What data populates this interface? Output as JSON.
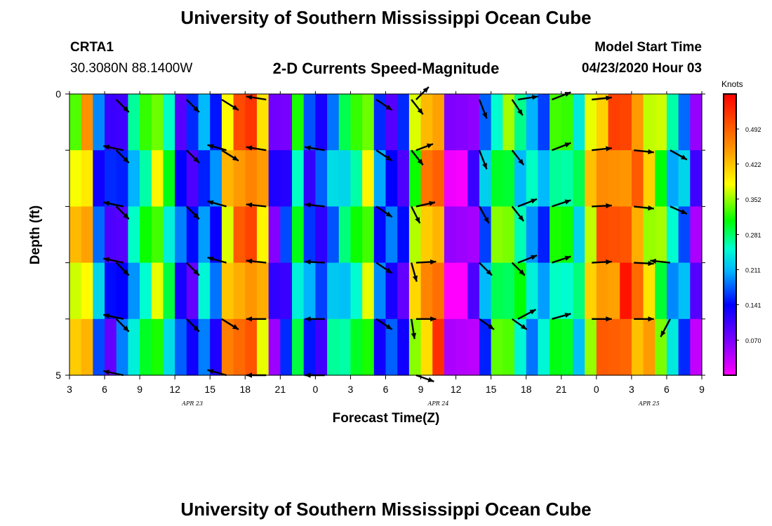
{
  "page_title": "University of Southern Mississippi Ocean Cube",
  "footer_title": "University of Southern Mississippi Ocean Cube",
  "station": {
    "id": "CRTA1",
    "coords": "30.3080N 88.1400W"
  },
  "model": {
    "label": "Model Start Time",
    "value": "04/23/2020 Hour 03"
  },
  "chart_data": {
    "type": "heatmap",
    "title": "2-D Currents Speed-Magnitude",
    "xlabel": "Forecast Time(Z)",
    "ylabel": "Depth (ft)",
    "x_tick_labels": [
      "3",
      "6",
      "9",
      "12",
      "15",
      "18",
      "21",
      "0",
      "3",
      "6",
      "9",
      "12",
      "15",
      "18",
      "21",
      "0",
      "3",
      "6",
      "9"
    ],
    "y_tick_labels": [
      "0",
      "5"
    ],
    "ylim": [
      0,
      5
    ],
    "date_labels": [
      {
        "text": "APR 23",
        "at_tick": 3.5
      },
      {
        "text": "APR 24",
        "at_tick": 10.5
      },
      {
        "text": "APR 25",
        "at_tick": 16.5
      }
    ],
    "colorbar": {
      "unit": "Knots",
      "range": [
        0.0,
        0.562
      ],
      "ticks": [
        "0.492",
        "0.422",
        "0.352",
        "0.281",
        "0.211",
        "0.141",
        "0.070"
      ],
      "tick_values": [
        0.492,
        0.422,
        0.352,
        0.281,
        0.211,
        0.141,
        0.07
      ]
    },
    "start_hour": 3,
    "hours": 54,
    "depth_bands": 5,
    "speed_profile": [
      0.38,
      0.42,
      0.18,
      0.12,
      0.14,
      0.22,
      0.3,
      0.34,
      0.28,
      0.14,
      0.12,
      0.2,
      0.16,
      0.42,
      0.46,
      0.5,
      0.4,
      0.1,
      0.12,
      0.28,
      0.16,
      0.14,
      0.22,
      0.24,
      0.3,
      0.34,
      0.18,
      0.14,
      0.12,
      0.36,
      0.44,
      0.48,
      0.02,
      0.04,
      0.06,
      0.2,
      0.3,
      0.32,
      0.26,
      0.22,
      0.2,
      0.28,
      0.3,
      0.24,
      0.4,
      0.46,
      0.48,
      0.5,
      0.46,
      0.4,
      0.32,
      0.24,
      0.18,
      0.08
    ],
    "vectors": [
      {
        "t": 4.0,
        "d": 0.1,
        "u": 0.6,
        "v": -0.6
      },
      {
        "t": 4.0,
        "d": 1.0,
        "u": 0.6,
        "v": -0.6
      },
      {
        "t": 4.0,
        "d": 2.0,
        "u": 0.6,
        "v": -0.6
      },
      {
        "t": 4.0,
        "d": 3.0,
        "u": 0.6,
        "v": -0.6
      },
      {
        "t": 4.0,
        "d": 4.0,
        "u": 0.6,
        "v": -0.6
      },
      {
        "t": 4.6,
        "d": 1.0,
        "u": -0.95,
        "v": 0.2
      },
      {
        "t": 4.6,
        "d": 2.0,
        "u": -0.95,
        "v": 0.2
      },
      {
        "t": 4.6,
        "d": 3.0,
        "u": -0.95,
        "v": 0.2
      },
      {
        "t": 4.6,
        "d": 4.0,
        "u": -0.95,
        "v": 0.2
      },
      {
        "t": 4.6,
        "d": 5.0,
        "u": -0.95,
        "v": 0.2
      },
      {
        "t": 10.0,
        "d": 0.1,
        "u": 0.6,
        "v": -0.6
      },
      {
        "t": 10.0,
        "d": 1.0,
        "u": 0.6,
        "v": -0.6
      },
      {
        "t": 10.0,
        "d": 2.0,
        "u": 0.6,
        "v": -0.6
      },
      {
        "t": 10.0,
        "d": 3.0,
        "u": 0.6,
        "v": -0.6
      },
      {
        "t": 10.0,
        "d": 4.0,
        "u": 0.6,
        "v": -0.6
      },
      {
        "t": 13.0,
        "d": 0.1,
        "u": 0.8,
        "v": -0.5
      },
      {
        "t": 13.0,
        "d": 1.0,
        "u": 0.8,
        "v": -0.5
      },
      {
        "t": 13.0,
        "d": 4.0,
        "u": 0.8,
        "v": -0.5
      },
      {
        "t": 13.4,
        "d": 1.0,
        "u": -0.9,
        "v": 0.25
      },
      {
        "t": 13.4,
        "d": 2.0,
        "u": -0.9,
        "v": 0.25
      },
      {
        "t": 13.4,
        "d": 3.0,
        "u": -0.9,
        "v": 0.25
      },
      {
        "t": 13.4,
        "d": 5.0,
        "u": -0.9,
        "v": 0.25
      },
      {
        "t": 16.8,
        "d": 0.1,
        "u": -0.95,
        "v": 0.15
      },
      {
        "t": 16.8,
        "d": 1.0,
        "u": -0.95,
        "v": 0.15
      },
      {
        "t": 16.8,
        "d": 2.0,
        "u": -0.95,
        "v": 0.1
      },
      {
        "t": 16.8,
        "d": 3.0,
        "u": -0.95,
        "v": 0.1
      },
      {
        "t": 16.8,
        "d": 4.0,
        "u": -0.95,
        "v": 0.0
      },
      {
        "t": 16.8,
        "d": 5.0,
        "u": -0.95,
        "v": 0.0
      },
      {
        "t": 21.8,
        "d": 1.0,
        "u": -0.95,
        "v": 0.15
      },
      {
        "t": 21.8,
        "d": 2.0,
        "u": -0.95,
        "v": 0.1
      },
      {
        "t": 21.8,
        "d": 3.0,
        "u": -0.95,
        "v": 0.05
      },
      {
        "t": 21.8,
        "d": 4.0,
        "u": -0.95,
        "v": 0.0
      },
      {
        "t": 21.8,
        "d": 5.0,
        "u": -0.95,
        "v": 0.0
      },
      {
        "t": 26.2,
        "d": 0.1,
        "u": 0.75,
        "v": -0.5
      },
      {
        "t": 26.2,
        "d": 1.0,
        "u": 0.75,
        "v": -0.5
      },
      {
        "t": 26.2,
        "d": 2.0,
        "u": 0.75,
        "v": -0.5
      },
      {
        "t": 26.2,
        "d": 3.0,
        "u": 0.75,
        "v": -0.5
      },
      {
        "t": 26.2,
        "d": 4.0,
        "u": 0.75,
        "v": -0.5
      },
      {
        "t": 29.2,
        "d": 0.1,
        "u": 0.55,
        "v": -0.7
      },
      {
        "t": 29.2,
        "d": 1.0,
        "u": 0.55,
        "v": -0.7
      },
      {
        "t": 29.2,
        "d": 2.0,
        "u": 0.4,
        "v": -0.8
      },
      {
        "t": 29.2,
        "d": 3.0,
        "u": 0.25,
        "v": -0.9
      },
      {
        "t": 29.2,
        "d": 4.0,
        "u": 0.15,
        "v": -0.95
      },
      {
        "t": 29.6,
        "d": 0.1,
        "u": 0.6,
        "v": 0.6
      },
      {
        "t": 29.6,
        "d": 1.0,
        "u": 0.8,
        "v": 0.3
      },
      {
        "t": 29.6,
        "d": 2.0,
        "u": 0.9,
        "v": 0.2
      },
      {
        "t": 29.6,
        "d": 3.0,
        "u": 0.95,
        "v": 0.05
      },
      {
        "t": 29.6,
        "d": 4.0,
        "u": 0.95,
        "v": 0.0
      },
      {
        "t": 29.6,
        "d": 5.0,
        "u": 0.85,
        "v": -0.3
      },
      {
        "t": 35.0,
        "d": 0.1,
        "u": 0.35,
        "v": -0.9
      },
      {
        "t": 35.0,
        "d": 1.0,
        "u": 0.35,
        "v": -0.9
      },
      {
        "t": 35.0,
        "d": 2.0,
        "u": 0.45,
        "v": -0.8
      },
      {
        "t": 35.0,
        "d": 3.0,
        "u": 0.6,
        "v": -0.6
      },
      {
        "t": 35.0,
        "d": 4.0,
        "u": 0.7,
        "v": -0.5
      },
      {
        "t": 37.8,
        "d": 0.1,
        "u": 0.5,
        "v": -0.75
      },
      {
        "t": 37.8,
        "d": 1.0,
        "u": 0.55,
        "v": -0.7
      },
      {
        "t": 37.8,
        "d": 2.0,
        "u": 0.55,
        "v": -0.7
      },
      {
        "t": 37.8,
        "d": 3.0,
        "u": 0.6,
        "v": -0.6
      },
      {
        "t": 37.8,
        "d": 4.0,
        "u": 0.7,
        "v": -0.5
      },
      {
        "t": 38.3,
        "d": 0.1,
        "u": 0.95,
        "v": 0.15
      },
      {
        "t": 38.3,
        "d": 2.0,
        "u": 0.9,
        "v": 0.35
      },
      {
        "t": 38.3,
        "d": 3.0,
        "u": 0.9,
        "v": 0.35
      },
      {
        "t": 38.3,
        "d": 4.0,
        "u": 0.85,
        "v": 0.45
      },
      {
        "t": 41.2,
        "d": 0.1,
        "u": 0.9,
        "v": 0.35
      },
      {
        "t": 41.2,
        "d": 1.0,
        "u": 0.9,
        "v": 0.35
      },
      {
        "t": 41.2,
        "d": 2.0,
        "u": 0.9,
        "v": 0.3
      },
      {
        "t": 41.2,
        "d": 3.0,
        "u": 0.9,
        "v": 0.3
      },
      {
        "t": 41.2,
        "d": 4.0,
        "u": 0.9,
        "v": 0.25
      },
      {
        "t": 44.6,
        "d": 0.1,
        "u": 0.95,
        "v": 0.1
      },
      {
        "t": 44.6,
        "d": 1.0,
        "u": 0.95,
        "v": 0.1
      },
      {
        "t": 44.6,
        "d": 2.0,
        "u": 0.95,
        "v": 0.05
      },
      {
        "t": 44.6,
        "d": 3.0,
        "u": 0.95,
        "v": 0.05
      },
      {
        "t": 44.6,
        "d": 4.0,
        "u": 0.95,
        "v": 0.0
      },
      {
        "t": 48.2,
        "d": 1.0,
        "u": 0.95,
        "v": -0.1
      },
      {
        "t": 48.2,
        "d": 2.0,
        "u": 0.95,
        "v": -0.1
      },
      {
        "t": 48.2,
        "d": 3.0,
        "u": 0.95,
        "v": -0.05
      },
      {
        "t": 48.2,
        "d": 4.0,
        "u": 0.95,
        "v": 0.0
      },
      {
        "t": 51.3,
        "d": 1.0,
        "u": 0.8,
        "v": -0.45
      },
      {
        "t": 51.3,
        "d": 2.0,
        "u": 0.8,
        "v": -0.35
      },
      {
        "t": 51.3,
        "d": 3.0,
        "u": -0.95,
        "v": 0.1
      },
      {
        "t": 51.3,
        "d": 4.0,
        "u": -0.45,
        "v": -0.85
      }
    ]
  }
}
